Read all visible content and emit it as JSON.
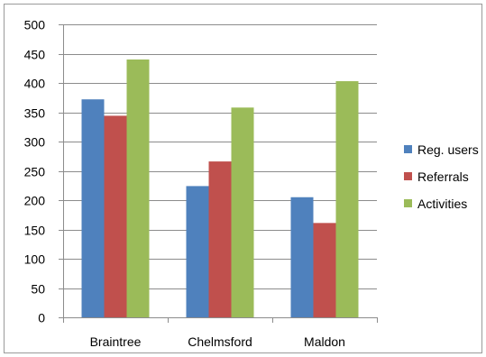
{
  "chart_data": {
    "type": "bar",
    "title": "",
    "xlabel": "",
    "ylabel": "",
    "categories": [
      "Braintree",
      "Chelmsford",
      "Maldon"
    ],
    "series": [
      {
        "name": "Reg. users",
        "values": [
          372,
          224,
          205
        ],
        "color": "#4F81BD"
      },
      {
        "name": "Referrals",
        "values": [
          344,
          266,
          161
        ],
        "color": "#C0504D"
      },
      {
        "name": "Activities",
        "values": [
          440,
          358,
          403
        ],
        "color": "#9BBB59"
      }
    ],
    "ylim": [
      0,
      500
    ],
    "yticks": [
      0,
      50,
      100,
      150,
      200,
      250,
      300,
      350,
      400,
      450,
      500
    ],
    "grid": true,
    "legend_position": "right"
  }
}
